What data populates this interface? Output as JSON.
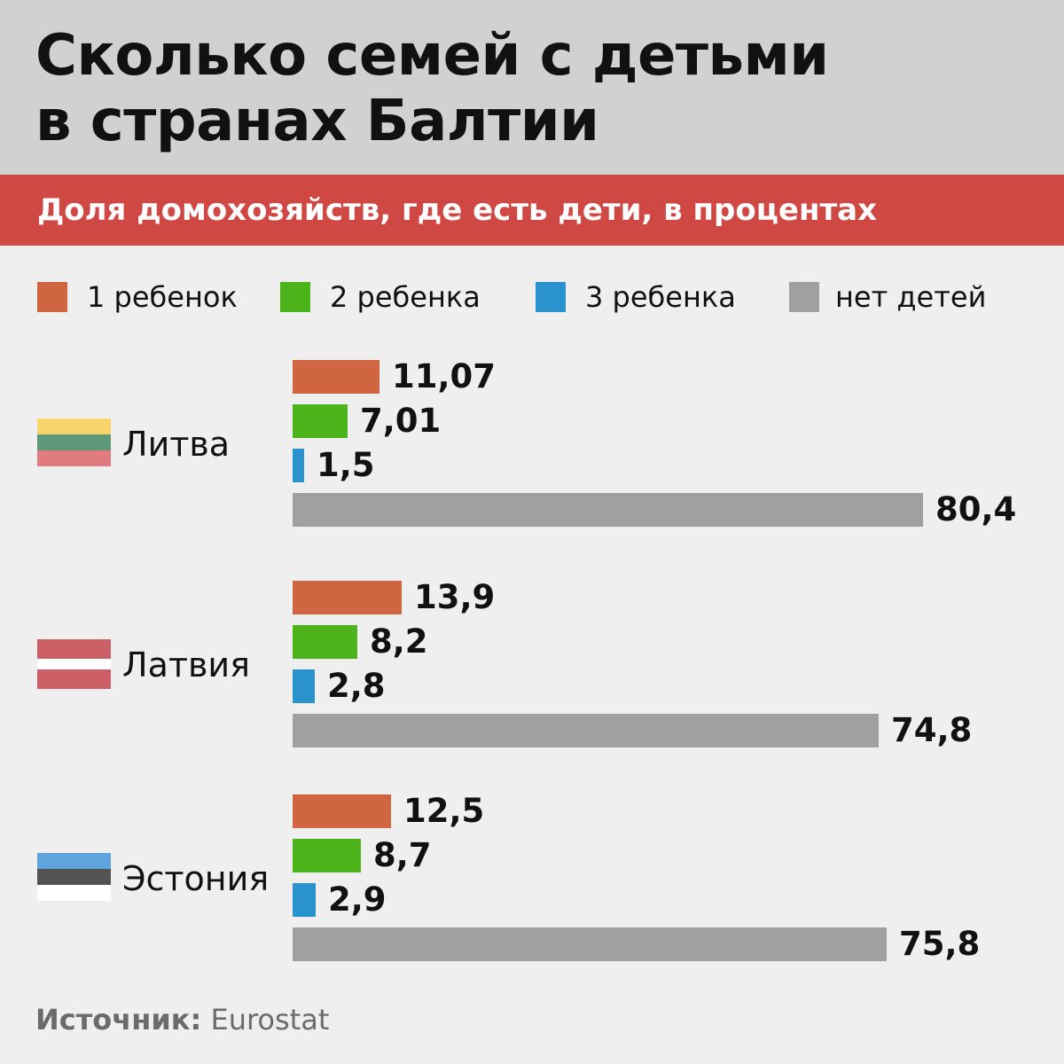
{
  "header": {
    "title_line1": "Сколько семей с детьми",
    "title_line2": "в странах Балтии",
    "subtitle": "Доля домохозяйств, где есть дети, в процентах"
  },
  "colors": {
    "header_bg": "#d1d1d1",
    "subtitle_bg": "#cf4843",
    "one_child": "#d06541",
    "two_children": "#4cb31a",
    "three_children": "#2a92cc",
    "no_children": "#a0a0a0"
  },
  "source": {
    "label": "Источник:",
    "value": "Eurostat"
  },
  "chart_data": {
    "type": "bar",
    "orientation": "horizontal",
    "title": "Сколько семей с детьми в странах Балтии",
    "subtitle": "Доля домохозяйств, где есть дети, в процентах",
    "xlabel": "",
    "ylabel": "",
    "xlim": [
      0,
      100
    ],
    "legend_position": "top",
    "series": [
      {
        "name": "1 ребенок",
        "color": "#d06541",
        "values": [
          11.07,
          13.9,
          12.5
        ],
        "labels": [
          "11,07",
          "13,9",
          "12,5"
        ]
      },
      {
        "name": "2 ребенка",
        "color": "#4cb31a",
        "values": [
          7.01,
          8.2,
          8.7
        ],
        "labels": [
          "7,01",
          "8,2",
          "8,7"
        ]
      },
      {
        "name": "3 ребенка",
        "color": "#2a92cc",
        "values": [
          1.5,
          2.8,
          2.9
        ],
        "labels": [
          "1,5",
          "2,8",
          "2,9"
        ]
      },
      {
        "name": "нет детей",
        "color": "#a0a0a0",
        "values": [
          80.4,
          74.8,
          75.8
        ],
        "labels": [
          "80,4",
          "74,8",
          "75,8"
        ]
      }
    ],
    "categories": [
      {
        "name": "Литва",
        "flag_name": "lithuania-flag-icon",
        "flag_colors": [
          "#f8d46c",
          "#5d9979",
          "#e07c80"
        ]
      },
      {
        "name": "Латвия",
        "flag_name": "latvia-flag-icon",
        "flag_colors": [
          "#cb5f65",
          "#ffffff",
          "#cb5f65"
        ]
      },
      {
        "name": "Эстония",
        "flag_name": "estonia-flag-icon",
        "flag_colors": [
          "#5fa4dd",
          "#545454",
          "#ffffff"
        ]
      }
    ]
  }
}
